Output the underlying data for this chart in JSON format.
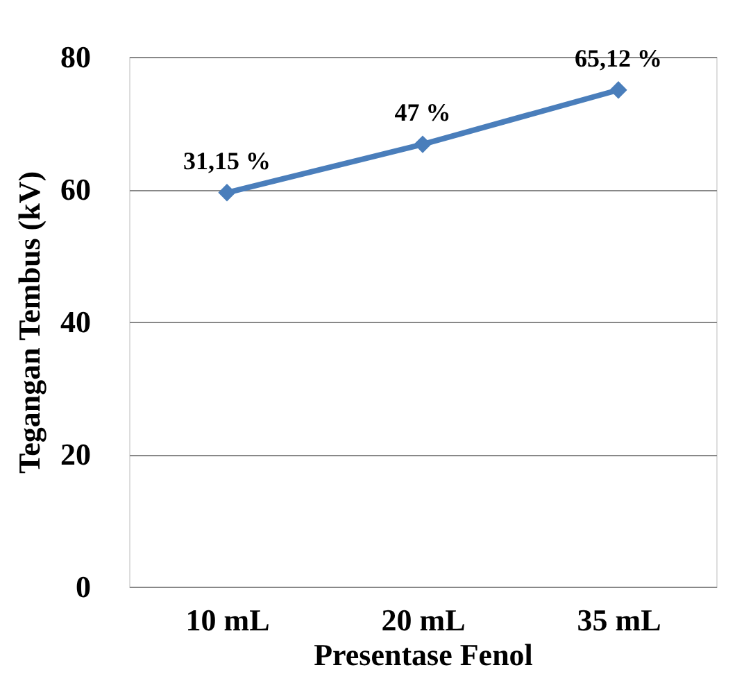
{
  "chart_data": {
    "type": "line",
    "xlabel": "Presentase Fenol",
    "ylabel": "Tegangan Tembus  (kV)",
    "categories": [
      "10 mL",
      "20 mL",
      "35 mL"
    ],
    "series": [
      {
        "color": "#4a7ebb",
        "values": [
          59.5,
          66.8,
          75.0
        ]
      }
    ],
    "ylim": [
      0,
      80
    ],
    "yticks": [
      0,
      20,
      40,
      60,
      80
    ],
    "grid": "y",
    "marker": "diamond",
    "line_style": "solid",
    "annotations": [
      {
        "text": "31,15 %",
        "x": "10 mL",
        "y": 59.5
      },
      {
        "text": "47 %",
        "x": "20 mL",
        "y": 66.8
      },
      {
        "text": "65,12 %",
        "x": "35 mL",
        "y": 75.0
      }
    ]
  }
}
